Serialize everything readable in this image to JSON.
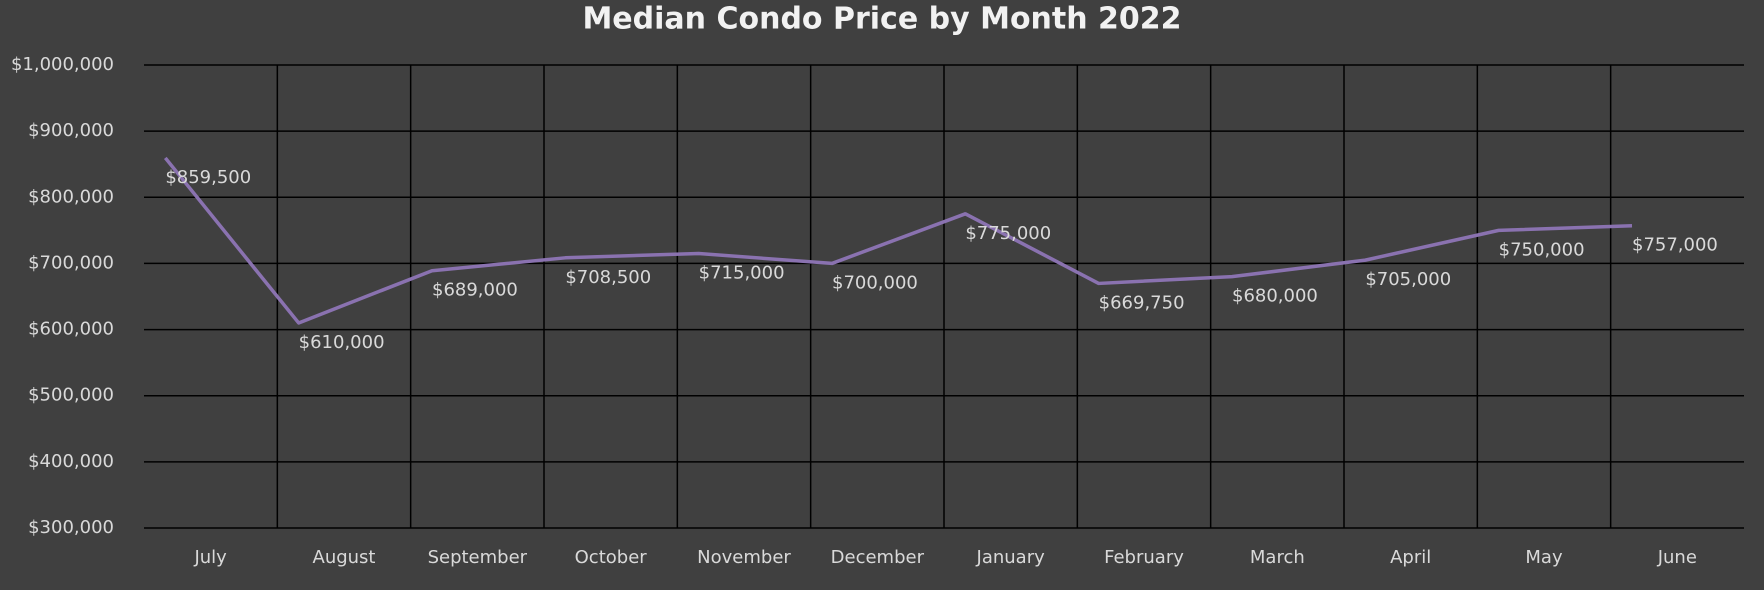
{
  "chart_data": {
    "type": "line",
    "title": "Median Condo Price by Month 2022",
    "categories": [
      "July",
      "August",
      "September",
      "October",
      "November",
      "December",
      "January",
      "February",
      "March",
      "April",
      "May",
      "June"
    ],
    "series": [
      {
        "name": "Median Condo Price",
        "color": "#8a72b0",
        "values": [
          859500,
          610000,
          689000,
          708500,
          715000,
          700000,
          775000,
          669750,
          680000,
          705000,
          750000,
          757000
        ],
        "value_labels": [
          "$859,500",
          "$610,000",
          "$689,000",
          "$708,500",
          "$715,000",
          "$700,000",
          "$775,000",
          "$669,750",
          "$680,000",
          "$705,000",
          "$750,000",
          "$757,000"
        ]
      }
    ],
    "ylim": [
      300000,
      1000000
    ],
    "yticks": [
      {
        "value": 300000,
        "label": "$300,000"
      },
      {
        "value": 400000,
        "label": "$400,000"
      },
      {
        "value": 500000,
        "label": "$500,000"
      },
      {
        "value": 600000,
        "label": "$600,000"
      },
      {
        "value": 700000,
        "label": "$700,000"
      },
      {
        "value": 800000,
        "label": "$800,000"
      },
      {
        "value": 900000,
        "label": "$900,000"
      },
      {
        "value": 1000000,
        "label": "$1,000,000"
      }
    ],
    "grid": true
  }
}
